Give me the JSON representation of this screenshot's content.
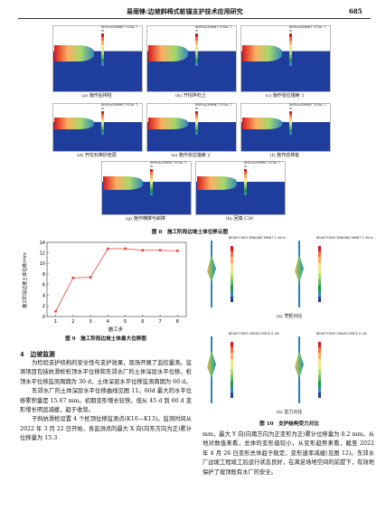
{
  "header": {
    "title": "易雨锋:边坡斜椅式桩锚支护技术应用研究",
    "page": "685"
  },
  "figure8": {
    "legend_title": "DISPLACEMENT TOTAL T, m",
    "subfigures": [
      "(a) 施作后排桩",
      "(b) 开挖碎石土",
      "(c) 施作张拉锚索 1",
      "(d) 开挖石英砂岩层",
      "(e) 施作张拉锚索 2",
      "(f) 施作前排桩",
      "(g) 施作横撑与斜撑",
      "(h) 回填 C30"
    ],
    "caption": "图 8　施工阶段边坡土体位移云图"
  },
  "chart_data": {
    "type": "line",
    "x_label": "施工步",
    "y_label": "施工阶段边坡土体位移/mm",
    "x": [
      1,
      2,
      3,
      4,
      5,
      6,
      7,
      8
    ],
    "xlim": [
      0.5,
      8.5
    ],
    "xticks": [
      1,
      2,
      3,
      4,
      5,
      6,
      7,
      8
    ],
    "series": [
      {
        "color": "#e8413a",
        "values": [
          1,
          7.3,
          7.4,
          12.8,
          12.8,
          12.5,
          12.5,
          12.4
        ]
      }
    ],
    "ylim": [
      0,
      14
    ],
    "yticks": [
      0,
      2,
      4,
      6,
      8,
      10,
      12,
      14
    ]
  },
  "figure9": {
    "caption": "图 9　施工阶段边坡土体最大位移图"
  },
  "figure10": {
    "moment_title": "BEAM FORCE BENDING MMNT Y, kN·m",
    "shear_title": "BEAM FORCE SHEAR FORCE Z, kN",
    "sub_a": "(a) 弯矩对比",
    "sub_b": "(b) 剪力对比",
    "caption": "图 10　支护结构受力对比"
  },
  "sections": [
    {
      "heading": "4　边坡监测",
      "paragraphs": [
        "为检验支护结构的安全性与支护效果，现场开展了监控量测。监测项目包括抗滑桩桩顶水平位移和东郊水厂的土体深层水平位移。桩顶水平位移监测周期为 30 d，土体深层水平位移监测周期为 60 d。",
        "东郊水厂的土体深层水平位移曲线见图 11。60d 最大的水平位移累积量是 15.67 mm。初期变形增长较快，但从 45 d 到 60 d 变形增长明显减缓，趋于收敛。",
        "于斜抗滑桩设置 4 个桩顶位移监测点(K10—K13)。监测时间从 2022 年 3 月 22 日开始，各监测点的最大 X 向(向东方向为正)累计位移量为 15.3",
        "mm，最大 Y 向(向南方向为正变形为正)累计位移量为 8.2 mm。从地对数值来看，总体的变形值较小，从变形趋势来看，截至 2022 年 4 月 26 日变形总体趋于稳定，变形速率减缓(见图 12)。东郊水厂边坡工程竣工后运行状态良好，在满足场地空间的前提下，有效地保护了坡顶既有水厂的安全。"
      ]
    }
  ]
}
